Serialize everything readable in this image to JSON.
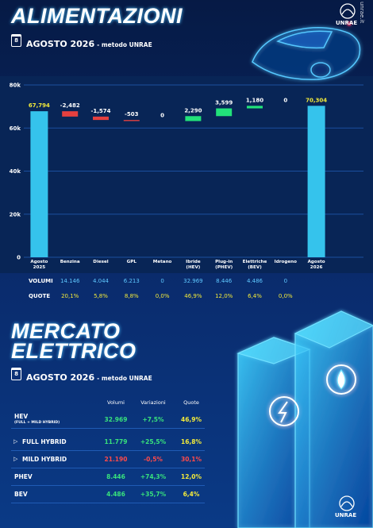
{
  "header": {
    "title": "ALIMENTAZIONI",
    "calendar_day": "8",
    "date": "AGOSTO 2026",
    "method": "- metodo UNRAE",
    "logo": "UNRAE",
    "side_text": "unrae.it"
  },
  "chart_data": {
    "type": "waterfall",
    "categories": [
      "Agosto 2025",
      "Benzina",
      "Diesel",
      "GPL",
      "Metano",
      "Ibride (HEV)",
      "Plug-in (PHEV)",
      "Elettriche (BEV)",
      "Idrogeno",
      "Agosto 2026"
    ],
    "values": [
      67794,
      -2482,
      -1574,
      -503,
      0,
      2290,
      3599,
      1180,
      0,
      70304
    ],
    "value_labels": [
      "67,794",
      "-2,482",
      "-1,574",
      "-503",
      "0",
      "2,290",
      "3,599",
      "1,180",
      "0",
      "70,304"
    ],
    "colors": {
      "total": "#35c3ec",
      "increase": "#22e27a",
      "decrease": "#e5403f"
    },
    "ylim": [
      0,
      80000
    ],
    "yticks": [
      {
        "value": 0,
        "label": "0"
      },
      {
        "value": 20000,
        "label": "20k"
      },
      {
        "value": 40000,
        "label": "40k"
      },
      {
        "value": 60000,
        "label": "60k"
      },
      {
        "value": 80000,
        "label": "80k"
      }
    ],
    "grid": true
  },
  "breakdown": {
    "rows": [
      {
        "label": "VOLUMI",
        "values": [
          "14.146",
          "4.044",
          "6.213",
          "0",
          "32.969",
          "8.446",
          "4.486",
          "0"
        ]
      },
      {
        "label": "QUOTE",
        "values": [
          "20,1%",
          "5,8%",
          "8,8%",
          "0,0%",
          "46,9%",
          "12,0%",
          "6,4%",
          "0,0%"
        ]
      }
    ]
  },
  "electric": {
    "title": [
      "MERCATO",
      "ELETTRICO"
    ],
    "calendar_day": "8",
    "date": "AGOSTO 2026",
    "method": "- metodo UNRAE",
    "columns": [
      "Volumi",
      "Variazioni",
      "Quote"
    ],
    "rows": [
      {
        "label": "HEV",
        "sublabel": "(FULL + MILD HYBRID)",
        "values": [
          "32.969",
          "+7,5%",
          "46,9%"
        ]
      },
      {
        "label": "FULL HYBRID",
        "values": [
          "11.779",
          "+25,5%",
          "16,8%"
        ]
      },
      {
        "label": "MILD HYBRID",
        "values": [
          "21.190",
          "-0,5%",
          "30,1%"
        ]
      },
      {
        "label": "PHEV",
        "values": [
          "8.446",
          "+74,3%",
          "12,0%"
        ]
      },
      {
        "label": "BEV",
        "values": [
          "4.486",
          "+35,7%",
          "6,4%"
        ]
      }
    ]
  },
  "footer": {
    "logo": "UNRAE"
  }
}
